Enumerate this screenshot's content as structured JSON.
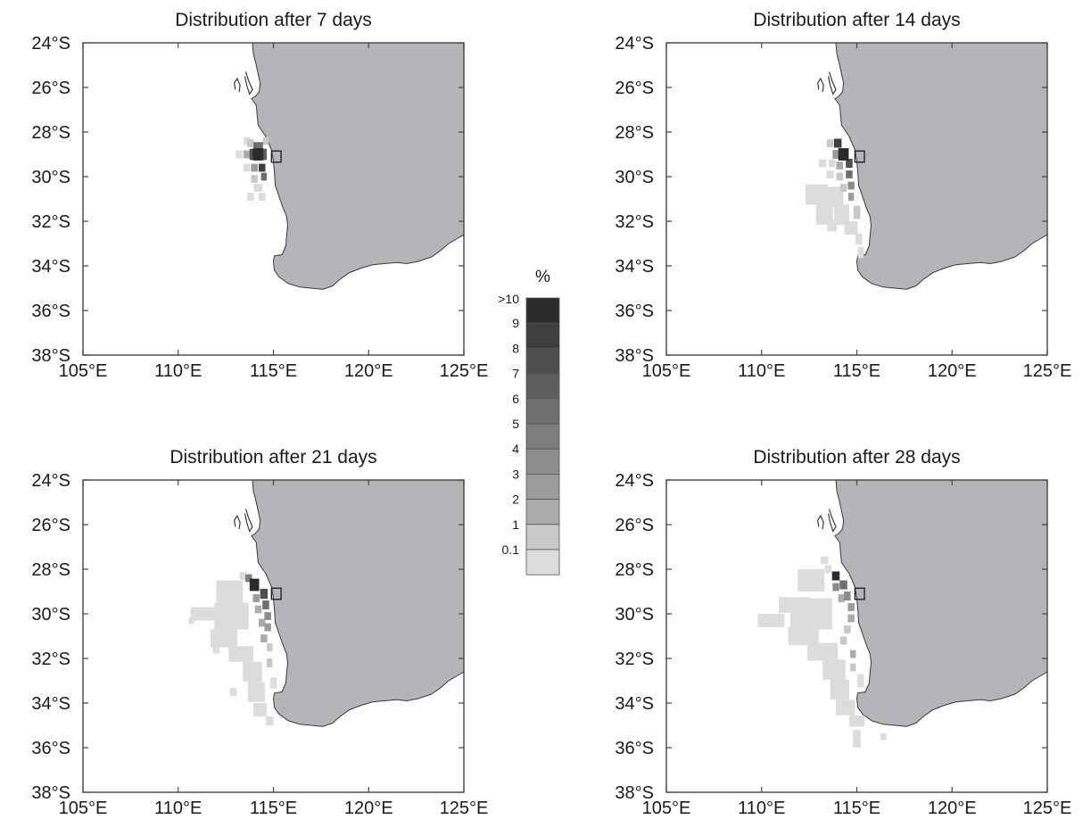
{
  "panels": [
    {
      "title": "Distribution after 7 days",
      "cells": [
        {
          "lon": 114.2,
          "lat": -29.0,
          "w": 0.55,
          "h": 0.55,
          "pct": 10
        },
        {
          "lon": 113.9,
          "lat": -29.0,
          "w": 0.3,
          "h": 0.5,
          "pct": 8
        },
        {
          "lon": 114.5,
          "lat": -29.0,
          "w": 0.3,
          "h": 0.5,
          "pct": 7
        },
        {
          "lon": 114.2,
          "lat": -28.6,
          "w": 0.5,
          "h": 0.3,
          "pct": 6
        },
        {
          "lon": 114.4,
          "lat": -29.6,
          "w": 0.35,
          "h": 0.35,
          "pct": 9
        },
        {
          "lon": 114.5,
          "lat": -30.0,
          "w": 0.3,
          "h": 0.35,
          "pct": 6
        },
        {
          "lon": 114.0,
          "lat": -29.6,
          "w": 0.35,
          "h": 0.35,
          "pct": 3
        },
        {
          "lon": 113.6,
          "lat": -29.0,
          "w": 0.35,
          "h": 0.35,
          "pct": 2
        },
        {
          "lon": 113.8,
          "lat": -28.5,
          "w": 0.35,
          "h": 0.35,
          "pct": 1
        },
        {
          "lon": 114.6,
          "lat": -28.4,
          "w": 0.3,
          "h": 0.35,
          "pct": 1
        },
        {
          "lon": 113.2,
          "lat": -29.0,
          "w": 0.35,
          "h": 0.35,
          "pct": 0.5
        },
        {
          "lon": 113.6,
          "lat": -29.6,
          "w": 0.35,
          "h": 0.35,
          "pct": 0.5
        },
        {
          "lon": 114.0,
          "lat": -30.1,
          "w": 0.35,
          "h": 0.35,
          "pct": 1
        },
        {
          "lon": 114.2,
          "lat": -30.5,
          "w": 0.45,
          "h": 0.35,
          "pct": 0.5
        },
        {
          "lon": 114.4,
          "lat": -30.9,
          "w": 0.35,
          "h": 0.35,
          "pct": 0.5
        },
        {
          "lon": 113.8,
          "lat": -30.9,
          "w": 0.35,
          "h": 0.35,
          "pct": 0.5
        },
        {
          "lon": 113.6,
          "lat": -28.4,
          "w": 0.35,
          "h": 0.35,
          "pct": 0.5
        }
      ]
    },
    {
      "title": "Distribution after 14 days",
      "cells": [
        {
          "lon": 114.3,
          "lat": -29.0,
          "w": 0.55,
          "h": 0.55,
          "pct": 10
        },
        {
          "lon": 114.0,
          "lat": -28.5,
          "w": 0.4,
          "h": 0.4,
          "pct": 9
        },
        {
          "lon": 114.6,
          "lat": -29.4,
          "w": 0.35,
          "h": 0.4,
          "pct": 8
        },
        {
          "lon": 114.6,
          "lat": -29.9,
          "w": 0.35,
          "h": 0.35,
          "pct": 6
        },
        {
          "lon": 114.7,
          "lat": -30.4,
          "w": 0.35,
          "h": 0.35,
          "pct": 4
        },
        {
          "lon": 114.7,
          "lat": -30.9,
          "w": 0.3,
          "h": 0.35,
          "pct": 3
        },
        {
          "lon": 113.9,
          "lat": -29.0,
          "w": 0.35,
          "h": 0.4,
          "pct": 3
        },
        {
          "lon": 113.6,
          "lat": -28.5,
          "w": 0.35,
          "h": 0.35,
          "pct": 1
        },
        {
          "lon": 114.1,
          "lat": -29.5,
          "w": 0.35,
          "h": 0.35,
          "pct": 2
        },
        {
          "lon": 113.7,
          "lat": -29.4,
          "w": 0.35,
          "h": 0.35,
          "pct": 0.5
        },
        {
          "lon": 113.2,
          "lat": -29.4,
          "w": 0.4,
          "h": 0.35,
          "pct": 0.5
        },
        {
          "lon": 113.6,
          "lat": -29.9,
          "w": 0.4,
          "h": 0.35,
          "pct": 0.5
        },
        {
          "lon": 114.1,
          "lat": -30.0,
          "w": 0.35,
          "h": 0.35,
          "pct": 1
        },
        {
          "lon": 114.3,
          "lat": -30.5,
          "w": 0.35,
          "h": 0.35,
          "pct": 1
        },
        {
          "lon": 112.9,
          "lat": -30.8,
          "w": 1.2,
          "h": 0.9,
          "pct": 0.5
        },
        {
          "lon": 113.9,
          "lat": -30.9,
          "w": 0.8,
          "h": 0.9,
          "pct": 0.5
        },
        {
          "lon": 113.3,
          "lat": -31.7,
          "w": 0.9,
          "h": 0.9,
          "pct": 0.5
        },
        {
          "lon": 114.2,
          "lat": -31.7,
          "w": 0.8,
          "h": 0.9,
          "pct": 0.5
        },
        {
          "lon": 115.0,
          "lat": -31.6,
          "w": 0.35,
          "h": 0.6,
          "pct": 1
        },
        {
          "lon": 114.7,
          "lat": -32.3,
          "w": 0.7,
          "h": 0.6,
          "pct": 0.5
        },
        {
          "lon": 115.1,
          "lat": -32.8,
          "w": 0.35,
          "h": 0.5,
          "pct": 0.5
        },
        {
          "lon": 115.2,
          "lat": -33.4,
          "w": 0.3,
          "h": 0.5,
          "pct": 0.5
        },
        {
          "lon": 113.7,
          "lat": -32.2,
          "w": 0.5,
          "h": 0.5,
          "pct": 0.5
        }
      ]
    },
    {
      "title": "Distribution after 21 days",
      "cells": [
        {
          "lon": 114.0,
          "lat": -28.7,
          "w": 0.5,
          "h": 0.55,
          "pct": 10
        },
        {
          "lon": 114.5,
          "lat": -29.1,
          "w": 0.4,
          "h": 0.45,
          "pct": 8
        },
        {
          "lon": 113.7,
          "lat": -28.4,
          "w": 0.35,
          "h": 0.35,
          "pct": 5
        },
        {
          "lon": 114.6,
          "lat": -29.6,
          "w": 0.35,
          "h": 0.4,
          "pct": 6
        },
        {
          "lon": 114.7,
          "lat": -30.1,
          "w": 0.35,
          "h": 0.35,
          "pct": 4
        },
        {
          "lon": 114.1,
          "lat": -29.3,
          "w": 0.35,
          "h": 0.35,
          "pct": 3
        },
        {
          "lon": 114.7,
          "lat": -30.6,
          "w": 0.35,
          "h": 0.35,
          "pct": 3
        },
        {
          "lon": 114.2,
          "lat": -29.8,
          "w": 0.35,
          "h": 0.35,
          "pct": 2
        },
        {
          "lon": 114.4,
          "lat": -30.4,
          "w": 0.35,
          "h": 0.35,
          "pct": 2
        },
        {
          "lon": 114.5,
          "lat": -31.1,
          "w": 0.35,
          "h": 0.35,
          "pct": 2
        },
        {
          "lon": 114.8,
          "lat": -31.5,
          "w": 0.3,
          "h": 0.35,
          "pct": 1
        },
        {
          "lon": 114.8,
          "lat": -32.2,
          "w": 0.3,
          "h": 0.4,
          "pct": 1
        },
        {
          "lon": 113.4,
          "lat": -28.3,
          "w": 0.35,
          "h": 0.35,
          "pct": 0.5
        },
        {
          "lon": 112.7,
          "lat": -29.0,
          "w": 1.4,
          "h": 1.0,
          "pct": 0.5
        },
        {
          "lon": 111.4,
          "lat": -30.0,
          "w": 1.5,
          "h": 0.6,
          "pct": 0.5
        },
        {
          "lon": 110.7,
          "lat": -30.3,
          "w": 0.3,
          "h": 0.3,
          "pct": 0.5
        },
        {
          "lon": 112.8,
          "lat": -30.1,
          "w": 1.8,
          "h": 1.2,
          "pct": 0.5
        },
        {
          "lon": 112.4,
          "lat": -31.1,
          "w": 1.4,
          "h": 0.8,
          "pct": 0.5
        },
        {
          "lon": 113.3,
          "lat": -31.8,
          "w": 1.3,
          "h": 0.7,
          "pct": 0.5
        },
        {
          "lon": 113.9,
          "lat": -32.6,
          "w": 1.0,
          "h": 0.9,
          "pct": 0.5
        },
        {
          "lon": 114.1,
          "lat": -33.5,
          "w": 0.9,
          "h": 0.9,
          "pct": 0.5
        },
        {
          "lon": 114.3,
          "lat": -34.3,
          "w": 0.7,
          "h": 0.6,
          "pct": 0.5
        },
        {
          "lon": 114.8,
          "lat": -34.8,
          "w": 0.4,
          "h": 0.4,
          "pct": 0.5
        },
        {
          "lon": 115.0,
          "lat": -33.1,
          "w": 0.35,
          "h": 0.5,
          "pct": 0.5
        },
        {
          "lon": 112.9,
          "lat": -33.5,
          "w": 0.35,
          "h": 0.35,
          "pct": 0.5
        },
        {
          "lon": 112.0,
          "lat": -31.6,
          "w": 0.35,
          "h": 0.35,
          "pct": 0.5
        }
      ]
    },
    {
      "title": "Distribution after 28 days",
      "cells": [
        {
          "lon": 113.9,
          "lat": -28.3,
          "w": 0.4,
          "h": 0.4,
          "pct": 10
        },
        {
          "lon": 114.3,
          "lat": -28.7,
          "w": 0.4,
          "h": 0.4,
          "pct": 6
        },
        {
          "lon": 113.9,
          "lat": -28.8,
          "w": 0.35,
          "h": 0.35,
          "pct": 4
        },
        {
          "lon": 114.5,
          "lat": -29.2,
          "w": 0.35,
          "h": 0.4,
          "pct": 4
        },
        {
          "lon": 114.7,
          "lat": -29.7,
          "w": 0.35,
          "h": 0.35,
          "pct": 3
        },
        {
          "lon": 114.2,
          "lat": -29.3,
          "w": 0.35,
          "h": 0.35,
          "pct": 2
        },
        {
          "lon": 114.7,
          "lat": -30.2,
          "w": 0.35,
          "h": 0.35,
          "pct": 2
        },
        {
          "lon": 114.8,
          "lat": -31.8,
          "w": 0.3,
          "h": 0.35,
          "pct": 2
        },
        {
          "lon": 114.5,
          "lat": -30.7,
          "w": 0.35,
          "h": 0.35,
          "pct": 1
        },
        {
          "lon": 114.3,
          "lat": -31.2,
          "w": 0.35,
          "h": 0.35,
          "pct": 1
        },
        {
          "lon": 114.8,
          "lat": -32.4,
          "w": 0.3,
          "h": 0.35,
          "pct": 1
        },
        {
          "lon": 113.5,
          "lat": -28.0,
          "w": 0.35,
          "h": 0.35,
          "pct": 0.5
        },
        {
          "lon": 113.3,
          "lat": -27.6,
          "w": 0.4,
          "h": 0.35,
          "pct": 0.5
        },
        {
          "lon": 112.6,
          "lat": -28.5,
          "w": 1.4,
          "h": 1.0,
          "pct": 0.5
        },
        {
          "lon": 111.7,
          "lat": -29.6,
          "w": 1.6,
          "h": 0.7,
          "pct": 0.5
        },
        {
          "lon": 110.5,
          "lat": -30.3,
          "w": 1.4,
          "h": 0.6,
          "pct": 0.5
        },
        {
          "lon": 112.6,
          "lat": -30.0,
          "w": 2.2,
          "h": 1.4,
          "pct": 0.5
        },
        {
          "lon": 112.2,
          "lat": -31.0,
          "w": 1.6,
          "h": 0.8,
          "pct": 0.5
        },
        {
          "lon": 113.2,
          "lat": -31.7,
          "w": 1.6,
          "h": 0.8,
          "pct": 0.5
        },
        {
          "lon": 113.8,
          "lat": -32.5,
          "w": 1.2,
          "h": 0.9,
          "pct": 0.5
        },
        {
          "lon": 114.1,
          "lat": -33.4,
          "w": 1.0,
          "h": 0.9,
          "pct": 0.5
        },
        {
          "lon": 114.4,
          "lat": -34.2,
          "w": 1.0,
          "h": 0.7,
          "pct": 0.5
        },
        {
          "lon": 115.0,
          "lat": -34.8,
          "w": 0.8,
          "h": 0.5,
          "pct": 0.5
        },
        {
          "lon": 115.0,
          "lat": -35.6,
          "w": 0.4,
          "h": 0.8,
          "pct": 0.5
        },
        {
          "lon": 116.4,
          "lat": -35.5,
          "w": 0.3,
          "h": 0.3,
          "pct": 0.5
        },
        {
          "lon": 115.2,
          "lat": -33.0,
          "w": 0.35,
          "h": 0.6,
          "pct": 0.5
        }
      ]
    }
  ],
  "axes": {
    "lon_range": [
      105,
      125
    ],
    "lat_range": [
      -38,
      -24
    ],
    "lon_ticks": [
      105,
      110,
      115,
      120,
      125
    ],
    "lat_ticks": [
      -24,
      -26,
      -28,
      -30,
      -32,
      -34,
      -36,
      -38
    ],
    "lon_tick_labels": [
      "105°E",
      "110°E",
      "115°E",
      "120°E",
      "125°E"
    ],
    "lat_tick_labels": [
      "24°S",
      "26°S",
      "28°S",
      "30°S",
      "32°S",
      "34°S",
      "36°S",
      "38°S"
    ]
  },
  "colorbar": {
    "unit": "%",
    "labels": [
      ">10",
      "9",
      "8",
      "7",
      "6",
      "5",
      "4",
      "3",
      "2",
      "1",
      "0.1"
    ],
    "colors": [
      "#2b2b2b",
      "#3e3e3e",
      "#4e4e4e",
      "#5e5e5e",
      "#6e6e6e",
      "#7d7d7d",
      "#8c8c8c",
      "#9b9b9b",
      "#ababab",
      "#c8c8c8",
      "#dcdcdc"
    ]
  },
  "colors": {
    "land": "#b4b5b8",
    "coast": "#3a3a3a",
    "axes": "#444444"
  }
}
